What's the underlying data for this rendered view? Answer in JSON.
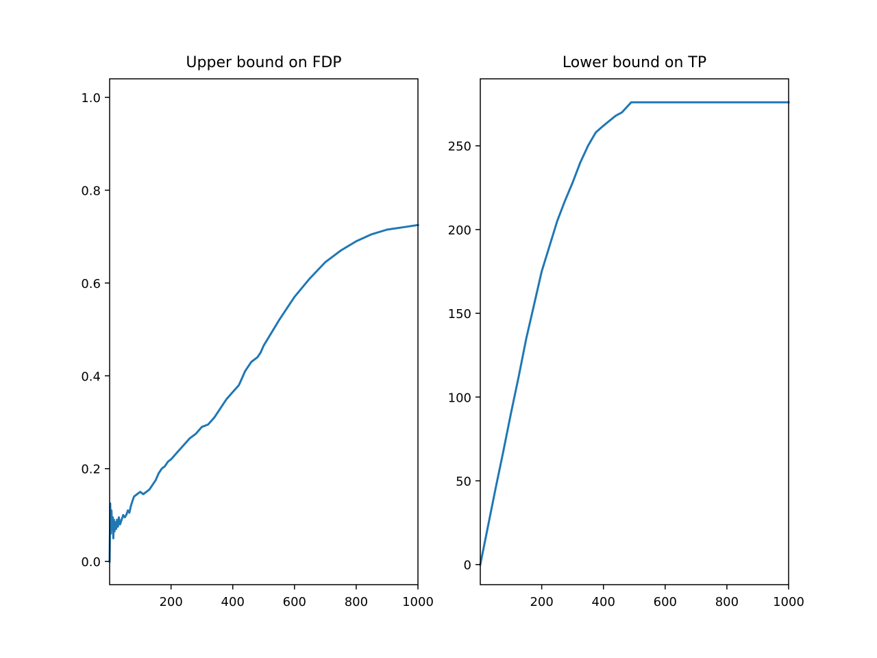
{
  "colors": {
    "line": "#1f77b4",
    "axes": "#000000",
    "background": "#ffffff"
  },
  "chart_data": [
    {
      "type": "line",
      "title": "Upper bound on FDP",
      "xlabel": "",
      "ylabel": "",
      "xlim": [
        1,
        1000
      ],
      "ylim": [
        -0.05,
        1.04
      ],
      "grid": false,
      "xticks": [
        200,
        400,
        600,
        800,
        1000
      ],
      "yticks": [
        0.0,
        0.2,
        0.4,
        0.6,
        0.8,
        1.0
      ],
      "yticklabels": [
        "0.0",
        "0.2",
        "0.4",
        "0.6",
        "0.8",
        "1.0"
      ],
      "series": [
        {
          "x": [
            1,
            3,
            5,
            7,
            9,
            11,
            13,
            15,
            17,
            19,
            22,
            25,
            28,
            31,
            35,
            40,
            45,
            50,
            55,
            60,
            65,
            70,
            75,
            80,
            90,
            100,
            110,
            120,
            130,
            140,
            150,
            160,
            170,
            180,
            190,
            200,
            220,
            240,
            260,
            280,
            300,
            320,
            340,
            360,
            380,
            400,
            420,
            440,
            460,
            480,
            490,
            500,
            550,
            600,
            650,
            700,
            750,
            800,
            850,
            900,
            950,
            1000
          ],
          "y": [
            0.0,
            0.125,
            0.06,
            0.11,
            0.07,
            0.095,
            0.05,
            0.09,
            0.065,
            0.085,
            0.07,
            0.09,
            0.075,
            0.095,
            0.08,
            0.09,
            0.1,
            0.095,
            0.1,
            0.11,
            0.105,
            0.12,
            0.13,
            0.14,
            0.145,
            0.15,
            0.145,
            0.15,
            0.155,
            0.165,
            0.175,
            0.19,
            0.2,
            0.205,
            0.215,
            0.22,
            0.235,
            0.25,
            0.265,
            0.275,
            0.29,
            0.295,
            0.31,
            0.33,
            0.35,
            0.365,
            0.38,
            0.41,
            0.43,
            0.44,
            0.45,
            0.465,
            0.52,
            0.57,
            0.61,
            0.645,
            0.67,
            0.69,
            0.705,
            0.715,
            0.72,
            0.725
          ]
        }
      ]
    },
    {
      "type": "line",
      "title": "Lower bound on TP",
      "xlabel": "",
      "ylabel": "",
      "xlim": [
        1,
        1000
      ],
      "ylim": [
        -12,
        290
      ],
      "grid": false,
      "xticks": [
        200,
        400,
        600,
        800,
        1000
      ],
      "yticks": [
        0,
        50,
        100,
        150,
        200,
        250
      ],
      "yticklabels": [
        "0",
        "50",
        "100",
        "150",
        "200",
        "250"
      ],
      "series": [
        {
          "x": [
            1,
            25,
            50,
            75,
            100,
            125,
            150,
            175,
            200,
            225,
            250,
            275,
            300,
            325,
            350,
            375,
            400,
            420,
            440,
            460,
            470,
            480,
            490,
            500,
            600,
            700,
            800,
            900,
            1000
          ],
          "y": [
            0,
            22,
            45,
            67,
            90,
            112,
            135,
            155,
            175,
            190,
            205,
            217,
            228,
            240,
            250,
            258,
            262,
            265,
            268,
            270,
            272,
            274,
            276,
            276,
            276,
            276,
            276,
            276,
            276
          ]
        }
      ]
    }
  ]
}
